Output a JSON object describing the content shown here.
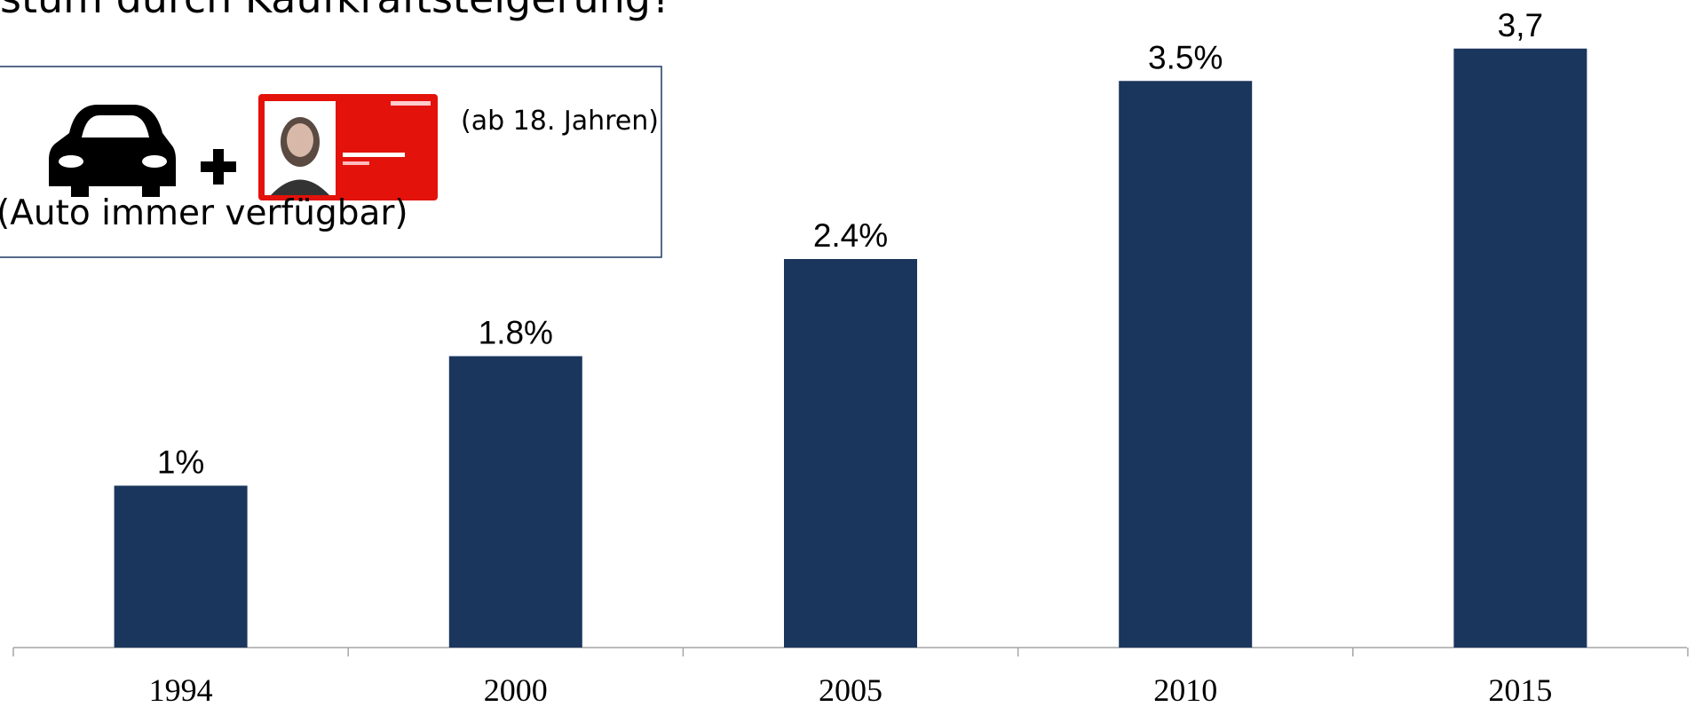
{
  "chart_data": {
    "type": "bar",
    "title": "stum durch Kaufkraftsteigerung?",
    "annotations": [
      "(ab 18. Jahren)",
      "(Auto immer verfügbar)"
    ],
    "categories": [
      "1994",
      "2000",
      "2005",
      "2010",
      "2015"
    ],
    "values": [
      1,
      1.8,
      2.4,
      3.5,
      3.7
    ],
    "value_labels": [
      "1%",
      "1.8%",
      "2.4%",
      "3.5%",
      "3,7"
    ],
    "color": "#1b365d"
  }
}
